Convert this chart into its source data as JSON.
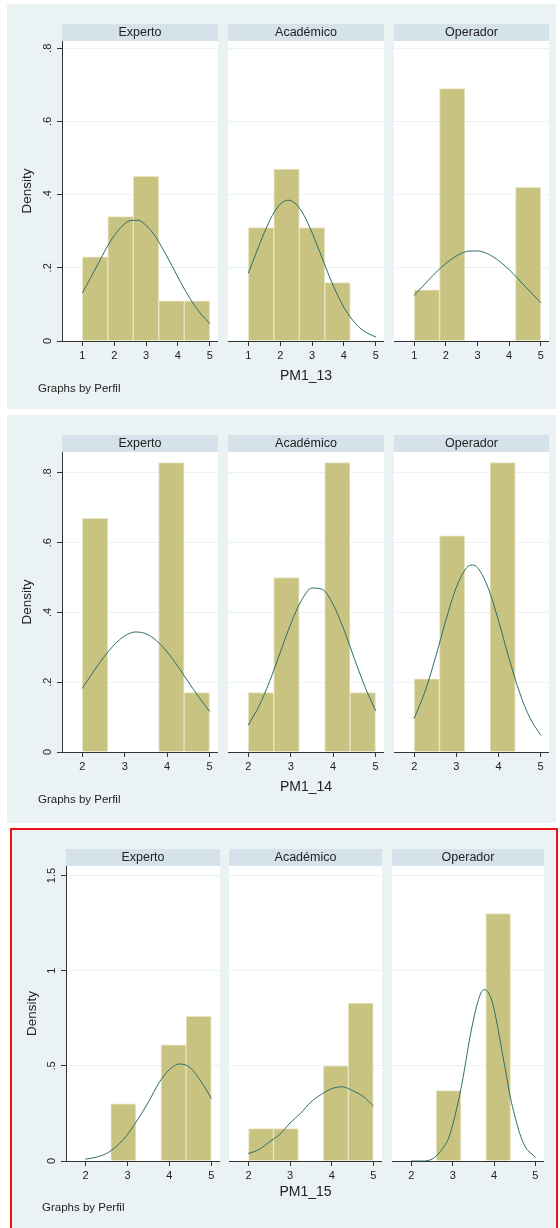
{
  "chart_data": [
    {
      "type": "histogram",
      "title": "Experto",
      "ylabel": "Density",
      "annotations": [
        "Graphs by Perfil"
      ],
      "bins": [
        1,
        1.8,
        2.6,
        3.4,
        4.2,
        5
      ],
      "series": [
        {
          "color": "#c9c382",
          "values": [
            0.23,
            0.34,
            0.45,
            0.11,
            0.11
          ]
        },
        {
          "type": "line",
          "color": "#2c6e6a",
          "x": [
            1,
            1.25,
            1.5,
            1.75,
            2,
            2.25,
            2.5,
            2.75,
            3,
            3.25,
            3.5,
            3.75,
            4,
            4.25,
            4.5,
            4.75,
            5
          ],
          "values": [
            0.132,
            0.171,
            0.212,
            0.253,
            0.288,
            0.314,
            0.329,
            0.33,
            0.316,
            0.291,
            0.256,
            0.216,
            0.175,
            0.135,
            0.1,
            0.071,
            0.048
          ]
        }
      ],
      "xlim": [
        0.36,
        5.26
      ],
      "ylim": [
        0,
        0.82
      ],
      "xticks": [
        1,
        2,
        3,
        4,
        5
      ],
      "yticks": [
        0,
        {
          "value": 0.2,
          "label": ".2"
        },
        {
          "value": 0.4,
          "label": ".4"
        },
        {
          "value": 0.6,
          "label": ".6"
        },
        {
          "value": 0.8,
          "label": ".8"
        }
      ],
      "grid": "y"
    },
    {
      "type": "histogram",
      "title": "Académico",
      "xlabel": "PM1_13",
      "bins": [
        1,
        1.8,
        2.6,
        3.4,
        4.2,
        5
      ],
      "series": [
        {
          "color": "#c9c382",
          "values": [
            0.31,
            0.47,
            0.31,
            0.16,
            0
          ]
        },
        {
          "type": "line",
          "color": "#2c6e6a",
          "x": [
            1,
            1.25,
            1.5,
            1.75,
            2,
            2.25,
            2.5,
            2.75,
            3,
            3.25,
            3.5,
            3.75,
            4,
            4.25,
            4.5,
            4.75,
            5
          ],
          "values": [
            0.186,
            0.242,
            0.296,
            0.343,
            0.374,
            0.385,
            0.374,
            0.343,
            0.296,
            0.242,
            0.186,
            0.135,
            0.092,
            0.06,
            0.036,
            0.021,
            0.011
          ]
        }
      ],
      "xlim": [
        0.36,
        5.26
      ],
      "ylim": [
        0,
        0.82
      ],
      "xticks": [
        1,
        2,
        3,
        4,
        5
      ],
      "yticks": [
        0,
        0.2,
        0.4,
        0.6,
        0.8
      ],
      "grid": "y",
      "tick_labels": "x"
    },
    {
      "type": "histogram",
      "title": "Operador",
      "bins": [
        1,
        1.8,
        2.6,
        3.4,
        4.2,
        5
      ],
      "series": [
        {
          "color": "#c9c382",
          "values": [
            0.14,
            0.69,
            0,
            0,
            0.42
          ]
        },
        {
          "type": "line",
          "color": "#2c6e6a",
          "x": [
            1,
            1.25,
            1.5,
            1.75,
            2,
            2.25,
            2.5,
            2.75,
            3,
            3.25,
            3.5,
            3.75,
            4,
            4.25,
            4.5,
            4.75,
            5
          ],
          "values": [
            0.125,
            0.148,
            0.171,
            0.193,
            0.212,
            0.228,
            0.24,
            0.246,
            0.246,
            0.241,
            0.23,
            0.214,
            0.195,
            0.173,
            0.15,
            0.127,
            0.105
          ]
        }
      ],
      "xlim": [
        0.36,
        5.26
      ],
      "ylim": [
        0,
        0.82
      ],
      "xticks": [
        1,
        2,
        3,
        4,
        5
      ],
      "yticks": [
        0,
        0.2,
        0.4,
        0.6,
        0.8
      ],
      "grid": "y",
      "tick_labels": "x"
    },
    {
      "type": "histogram",
      "title": "Experto",
      "ylabel": "Density",
      "annotations": [
        "Graphs by Perfil"
      ],
      "bins": [
        2,
        2.6,
        3.2,
        3.8,
        4.4,
        5
      ],
      "series": [
        {
          "color": "#c9c382",
          "values": [
            0.67,
            0,
            0,
            0.83,
            0.17
          ]
        },
        {
          "type": "line",
          "color": "#2c6e6a",
          "x": [
            2,
            2.25,
            2.5,
            2.75,
            3,
            3.25,
            3.5,
            3.75,
            4,
            4.25,
            4.5,
            4.75,
            5
          ],
          "values": [
            0.183,
            0.228,
            0.271,
            0.307,
            0.333,
            0.344,
            0.339,
            0.319,
            0.287,
            0.246,
            0.201,
            0.157,
            0.117
          ]
        }
      ],
      "xlim": [
        1.52,
        5.2
      ],
      "ylim": [
        0,
        0.86
      ],
      "xticks": [
        2,
        3,
        4,
        5
      ],
      "yticks": [
        0,
        {
          "value": 0.2,
          "label": ".2"
        },
        {
          "value": 0.4,
          "label": ".4"
        },
        {
          "value": 0.6,
          "label": ".6"
        },
        {
          "value": 0.8,
          "label": ".8"
        }
      ],
      "grid": "y"
    },
    {
      "type": "histogram",
      "title": "Académico",
      "xlabel": "PM1_14",
      "bins": [
        2,
        2.6,
        3.2,
        3.8,
        4.4,
        5
      ],
      "series": [
        {
          "color": "#c9c382",
          "values": [
            0.17,
            0.5,
            0,
            0.83,
            0.17
          ]
        },
        {
          "type": "line",
          "color": "#2c6e6a",
          "x": [
            2,
            2.25,
            2.5,
            2.75,
            3,
            3.25,
            3.5,
            3.75,
            4,
            4.25,
            4.5,
            4.75,
            5
          ],
          "values": [
            0.078,
            0.131,
            0.202,
            0.285,
            0.367,
            0.434,
            0.47,
            0.466,
            0.423,
            0.352,
            0.268,
            0.187,
            0.119
          ]
        }
      ],
      "xlim": [
        1.52,
        5.2
      ],
      "ylim": [
        0,
        0.86
      ],
      "xticks": [
        2,
        3,
        4,
        5
      ],
      "yticks": [
        0,
        0.2,
        0.4,
        0.6,
        0.8
      ],
      "grid": "y",
      "tick_labels": "x"
    },
    {
      "type": "histogram",
      "title": "Operador",
      "bins": [
        2,
        2.6,
        3.2,
        3.8,
        4.4,
        5
      ],
      "series": [
        {
          "color": "#c9c382",
          "values": [
            0.21,
            0.62,
            0,
            0.83,
            0
          ]
        },
        {
          "type": "line",
          "color": "#2c6e6a",
          "x": [
            2,
            2.25,
            2.5,
            2.75,
            3,
            3.25,
            3.38,
            3.5,
            3.75,
            4,
            4.25,
            4.5,
            4.75,
            5
          ],
          "values": [
            0.097,
            0.171,
            0.269,
            0.377,
            0.472,
            0.529,
            0.536,
            0.529,
            0.472,
            0.377,
            0.269,
            0.171,
            0.097,
            0.049
          ]
        }
      ],
      "xlim": [
        1.52,
        5.2
      ],
      "ylim": [
        0,
        0.86
      ],
      "xticks": [
        2,
        3,
        4,
        5
      ],
      "yticks": [
        0,
        0.2,
        0.4,
        0.6,
        0.8
      ],
      "grid": "y",
      "tick_labels": "x"
    },
    {
      "type": "histogram",
      "title": "Experto",
      "ylabel": "Density",
      "annotations": [
        "Graphs by Perfil"
      ],
      "bins": [
        2,
        2.6,
        3.2,
        3.8,
        4.4,
        5
      ],
      "series": [
        {
          "color": "#c9c382",
          "values": [
            0,
            0.3,
            0,
            0.61,
            0.76
          ]
        },
        {
          "type": "line",
          "color": "#2c6e6a",
          "x": [
            2,
            2.25,
            2.5,
            2.75,
            3,
            3.25,
            3.5,
            3.75,
            4,
            4.25,
            4.5,
            4.75,
            5
          ],
          "values": [
            0.01,
            0.02,
            0.04,
            0.08,
            0.14,
            0.22,
            0.31,
            0.41,
            0.48,
            0.51,
            0.49,
            0.42,
            0.33
          ]
        }
      ],
      "xlim": [
        1.53,
        5.21
      ],
      "ylim": [
        0,
        1.55
      ],
      "xticks": [
        2,
        3,
        4,
        5
      ],
      "yticks": [
        0,
        {
          "value": 0.5,
          "label": ".5"
        },
        1,
        1.5
      ],
      "grid": "y"
    },
    {
      "type": "histogram",
      "title": "Académico",
      "xlabel": "PM1_15",
      "bins": [
        2,
        2.6,
        3.2,
        3.8,
        4.4,
        5
      ],
      "series": [
        {
          "color": "#c9c382",
          "values": [
            0.17,
            0.17,
            0,
            0.5,
            0.83
          ]
        },
        {
          "type": "line",
          "color": "#2c6e6a",
          "x": [
            2,
            2.25,
            2.5,
            2.75,
            3,
            3.25,
            3.5,
            3.75,
            4,
            4.25,
            4.5,
            4.75,
            5
          ],
          "values": [
            0.04,
            0.06,
            0.1,
            0.14,
            0.2,
            0.25,
            0.31,
            0.35,
            0.38,
            0.39,
            0.37,
            0.34,
            0.29
          ]
        }
      ],
      "xlim": [
        1.53,
        5.21
      ],
      "ylim": [
        0,
        1.55
      ],
      "xticks": [
        2,
        3,
        4,
        5
      ],
      "yticks": [
        0,
        0.5,
        1,
        1.5
      ],
      "grid": "y",
      "tick_labels": "x"
    },
    {
      "type": "histogram",
      "title": "Operador",
      "bins": [
        2,
        2.6,
        3.2,
        3.8,
        4.4,
        5
      ],
      "series": [
        {
          "color": "#c9c382",
          "values": [
            0,
            0.37,
            0,
            1.3,
            0
          ]
        },
        {
          "type": "line",
          "color": "#2c6e6a",
          "x": [
            2,
            2.25,
            2.5,
            2.7,
            2.9,
            3,
            3.1,
            3.2,
            3.3,
            3.4,
            3.5,
            3.6,
            3.7,
            3.78,
            3.9,
            4,
            4.1,
            4.2,
            4.3,
            4.4,
            4.5,
            4.6,
            4.7,
            4.8,
            4.9,
            5
          ],
          "values": [
            0,
            0,
            0.01,
            0.05,
            0.12,
            0.19,
            0.28,
            0.38,
            0.5,
            0.63,
            0.74,
            0.83,
            0.89,
            0.9,
            0.87,
            0.8,
            0.69,
            0.57,
            0.45,
            0.33,
            0.24,
            0.16,
            0.1,
            0.06,
            0.04,
            0.02
          ]
        }
      ],
      "xlim": [
        1.53,
        5.21
      ],
      "ylim": [
        0,
        1.55
      ],
      "xticks": [
        2,
        3,
        4,
        5
      ],
      "yticks": [
        0,
        0.5,
        1,
        1.5
      ],
      "grid": "y",
      "tick_labels": "x"
    }
  ]
}
